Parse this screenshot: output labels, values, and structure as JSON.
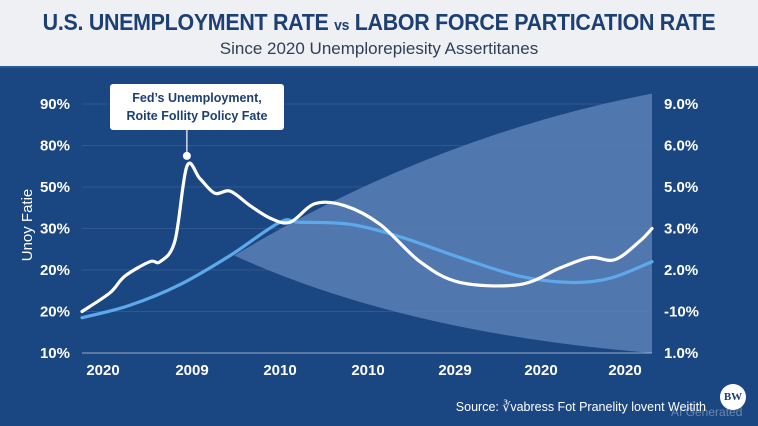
{
  "header": {
    "title_part1": "U.S. UNEMPLOYMENT RATE ",
    "title_vs": "vs",
    "title_part2": " LABOR FORCE PARTICATION RATE",
    "subtitle": "Since 2020 Unemplorepiesity Assertitanes"
  },
  "callout": {
    "line1": "Fed’s Unemployment,",
    "line2": "Roite Follity Policy Fate"
  },
  "footer": {
    "source": "Source: ∛vabress Fot Pranelity lovent Weitith",
    "logo": "BW",
    "watermark": "AI Generated"
  },
  "colors": {
    "background": "#1a4682",
    "header_bg": "#eef0f4",
    "title": "#1c3f74",
    "unemployment_line": "#ffffff",
    "participation_line": "#5ea8ec",
    "band": "#5a80b6"
  },
  "chart_data": {
    "type": "line",
    "title": "U.S. UNEMPLOYMENT RATE vs LABOR FORCE PARTICATION RATE",
    "subtitle": "Since 2020 Unemplorepiesity Assertitanes",
    "ylabel": "Unoy Fatie",
    "y_left_ticks": [
      "10%",
      "20%",
      "20%",
      "30%",
      "50%",
      "80%",
      "90%"
    ],
    "y_right_ticks": [
      "1.0%",
      "-10%",
      "2.0%",
      "3.0%",
      "5.0%",
      "6.0%",
      "9.0%"
    ],
    "x_ticks": [
      "2020",
      "2009",
      "2010",
      "2010",
      "2029",
      "2020",
      "2020"
    ],
    "y_units": "left-axis tick index (0 = bottom tick '10%', 6 = top tick '90%')",
    "x_units": "fraction of x-axis span (0 = first tick region, 1 = right edge)",
    "ylim": [
      0,
      6.2
    ],
    "grid": true,
    "series": [
      {
        "name": "Unemployment Rate",
        "color": "#ffffff",
        "points": [
          [
            0.0,
            1.0
          ],
          [
            0.049,
            1.45
          ],
          [
            0.075,
            1.85
          ],
          [
            0.119,
            2.2
          ],
          [
            0.137,
            2.2
          ],
          [
            0.163,
            2.7
          ],
          [
            0.184,
            4.5
          ],
          [
            0.207,
            4.2
          ],
          [
            0.233,
            3.85
          ],
          [
            0.26,
            3.9
          ],
          [
            0.295,
            3.55
          ],
          [
            0.33,
            3.25
          ],
          [
            0.365,
            3.15
          ],
          [
            0.409,
            3.6
          ],
          [
            0.461,
            3.55
          ],
          [
            0.523,
            3.1
          ],
          [
            0.593,
            2.2
          ],
          [
            0.663,
            1.7
          ],
          [
            0.768,
            1.65
          ],
          [
            0.839,
            2.05
          ],
          [
            0.891,
            2.3
          ],
          [
            0.935,
            2.25
          ],
          [
            0.979,
            2.7
          ],
          [
            1.0,
            3.0
          ]
        ]
      },
      {
        "name": "Labor Force Participation Rate",
        "color": "#5ea8ec",
        "points": [
          [
            0.0,
            0.85
          ],
          [
            0.084,
            1.15
          ],
          [
            0.172,
            1.65
          ],
          [
            0.26,
            2.35
          ],
          [
            0.347,
            3.15
          ],
          [
            0.382,
            3.15
          ],
          [
            0.47,
            3.1
          ],
          [
            0.558,
            2.8
          ],
          [
            0.663,
            2.3
          ],
          [
            0.768,
            1.85
          ],
          [
            0.856,
            1.7
          ],
          [
            0.926,
            1.8
          ],
          [
            1.0,
            2.2
          ]
        ]
      }
    ],
    "band": {
      "name": "projection range",
      "start": [
        0.267,
        2.35
      ],
      "upper_end": [
        1.0,
        6.25
      ],
      "lower_end": [
        1.0,
        0.0
      ]
    },
    "annotation": {
      "text": "Fed’s Unemployment, Roite Follity Policy Fate",
      "at": [
        0.184,
        4.75
      ]
    }
  }
}
